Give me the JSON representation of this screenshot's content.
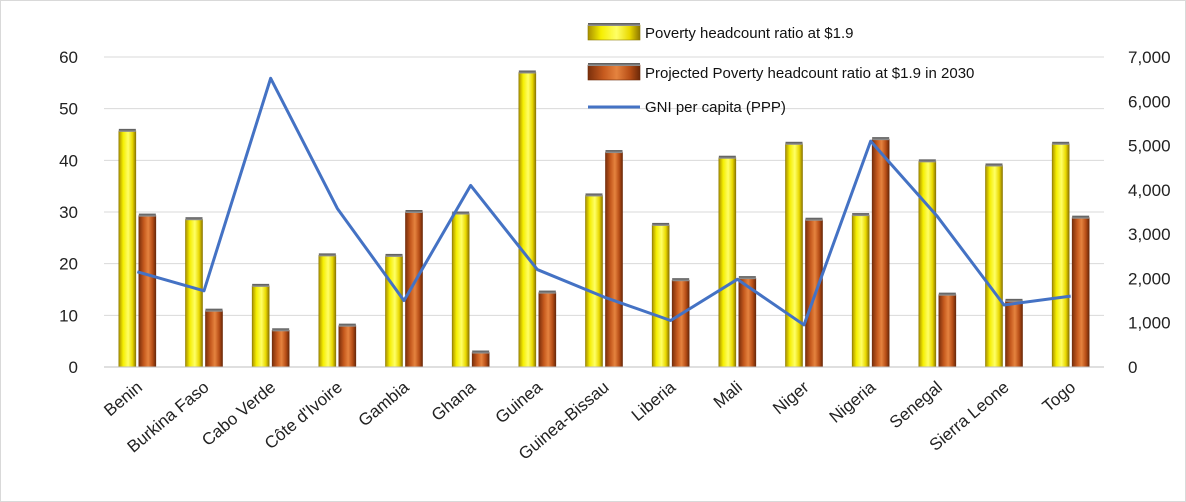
{
  "chart_data": {
    "type": "bar",
    "categories": [
      "Benin",
      "Burkina Faso",
      "Cabo Verde",
      "Côte d'Ivoire",
      "Gambia",
      "Ghana",
      "Guinea",
      "Guinea-Bissau",
      "Liberia",
      "Mali",
      "Niger",
      "Nigeria",
      "Senegal",
      "Sierra Leone",
      "Togo"
    ],
    "series": [
      {
        "name": "Poverty headcount ratio at $1.9",
        "type": "bar",
        "axis": "left",
        "color": "#f2e600",
        "values": [
          45.7,
          28.6,
          15.7,
          21.6,
          21.5,
          29.7,
          57.0,
          33.2,
          27.5,
          40.5,
          43.2,
          29.4,
          39.8,
          39.0,
          43.2
        ]
      },
      {
        "name": "Projected Poverty headcount ratio at $1.9 in 2030",
        "type": "bar",
        "axis": "left",
        "color": "#c65a1e",
        "values": [
          29.3,
          10.9,
          7.1,
          8.0,
          30.0,
          2.8,
          14.4,
          41.6,
          16.8,
          17.2,
          28.5,
          44.1,
          14.0,
          12.8,
          28.9
        ]
      },
      {
        "name": "GNI per capita (PPP)",
        "type": "line",
        "axis": "right",
        "color": "#4472c4",
        "values": [
          2150,
          1720,
          6520,
          3580,
          1500,
          4100,
          2200,
          1580,
          1050,
          1980,
          950,
          5100,
          3400,
          1400,
          1600
        ]
      }
    ],
    "y_left": {
      "min": 0,
      "max": 60,
      "ticks": [
        0,
        10,
        20,
        30,
        40,
        50,
        60
      ]
    },
    "y_right": {
      "min": 0,
      "max": 7000,
      "ticks": [
        "0",
        "1,000",
        "2,000",
        "3,000",
        "4,000",
        "5,000",
        "6,000",
        "7,000"
      ]
    },
    "title": "",
    "xlabel": "",
    "ylabel": "",
    "grid": true,
    "legend_position": "top-right"
  }
}
